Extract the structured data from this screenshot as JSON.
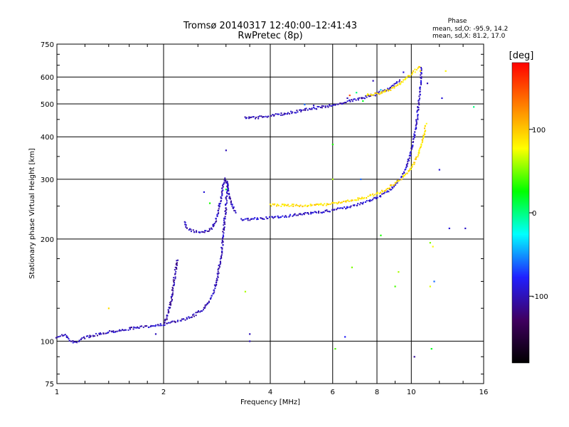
{
  "chart_data": {
    "type": "scatter",
    "title": "Tromsø 20140317 12:40:00–12:41:43",
    "subtitle": "RwPretec (8p)",
    "xlabel": "Frequency [MHz]",
    "ylabel": "Stationary phase Virtual Height [km]",
    "xscale": "log",
    "yscale": "log",
    "xlim": [
      1,
      16
    ],
    "ylim": [
      75,
      750
    ],
    "xticks": [
      1,
      2,
      4,
      6,
      8,
      10,
      16
    ],
    "yticks": [
      75,
      100,
      200,
      300,
      400,
      500,
      600,
      750
    ],
    "grid": true,
    "stats": {
      "heading": "Phase",
      "o_line": "mean, sd,O: -95.9, 14.2",
      "x_line": "mean, sd,X: 81.2, 17.0",
      "o_mean": -95.9,
      "o_sd": 14.2,
      "x_mean": 81.2,
      "x_sd": 17.0
    },
    "colorbar": {
      "label": "[deg]",
      "min": -180,
      "max": 180,
      "ticks": [
        100,
        0,
        -100
      ],
      "tick_labels": [
        "100",
        "0",
        "-100"
      ],
      "colors": [
        "#000000",
        "#400060",
        "#2020ff",
        "#00ffff",
        "#00ff00",
        "#ffff00",
        "#ff8000",
        "#ff0000"
      ]
    },
    "series": [
      {
        "id": "o-trace-e-region",
        "phase": -100,
        "points": [
          [
            1.0,
            103
          ],
          [
            1.03,
            104
          ],
          [
            1.06,
            104
          ],
          [
            1.09,
            100
          ],
          [
            1.12,
            99
          ],
          [
            1.15,
            100
          ],
          [
            1.18,
            102
          ],
          [
            1.22,
            103
          ],
          [
            1.27,
            104
          ],
          [
            1.32,
            105
          ],
          [
            1.37,
            106
          ],
          [
            1.42,
            107
          ],
          [
            1.48,
            107
          ],
          [
            1.55,
            108
          ],
          [
            1.62,
            109
          ],
          [
            1.7,
            110
          ],
          [
            1.78,
            110
          ],
          [
            1.86,
            111
          ],
          [
            1.95,
            112
          ],
          [
            2.0,
            112
          ],
          [
            2.08,
            113
          ],
          [
            2.15,
            114
          ],
          [
            2.22,
            115
          ],
          [
            2.3,
            116
          ],
          [
            2.38,
            118
          ],
          [
            2.46,
            120
          ],
          [
            2.55,
            123
          ],
          [
            2.62,
            126
          ],
          [
            2.68,
            130
          ],
          [
            2.73,
            135
          ],
          [
            2.78,
            142
          ],
          [
            2.83,
            152
          ],
          [
            2.87,
            165
          ],
          [
            2.91,
            180
          ],
          [
            2.94,
            200
          ],
          [
            2.97,
            225
          ],
          [
            3.0,
            250
          ],
          [
            3.02,
            275
          ],
          [
            3.04,
            300
          ]
        ]
      },
      {
        "id": "o-trace-e-branch",
        "phase": -105,
        "points": [
          [
            2.0,
            112
          ],
          [
            2.05,
            118
          ],
          [
            2.08,
            125
          ],
          [
            2.11,
            135
          ],
          [
            2.13,
            145
          ],
          [
            2.15,
            155
          ],
          [
            2.17,
            165
          ],
          [
            2.19,
            175
          ]
        ]
      },
      {
        "id": "o-trace-es-cusp",
        "phase": -100,
        "points": [
          [
            2.3,
            225
          ],
          [
            2.32,
            215
          ],
          [
            2.38,
            212
          ],
          [
            2.45,
            210
          ],
          [
            2.52,
            210
          ],
          [
            2.6,
            210
          ],
          [
            2.68,
            212
          ],
          [
            2.74,
            215
          ],
          [
            2.8,
            225
          ],
          [
            2.85,
            240
          ],
          [
            2.9,
            260
          ],
          [
            2.94,
            285
          ],
          [
            2.98,
            300
          ],
          [
            3.02,
            290
          ],
          [
            3.06,
            270
          ],
          [
            3.1,
            255
          ],
          [
            3.15,
            245
          ],
          [
            3.2,
            238
          ]
        ]
      },
      {
        "id": "o-trace-f-region",
        "phase": -95,
        "points": [
          [
            3.3,
            228
          ],
          [
            3.6,
            229
          ],
          [
            4.0,
            231
          ],
          [
            4.5,
            234
          ],
          [
            5.0,
            237
          ],
          [
            5.5,
            240
          ],
          [
            6.0,
            243
          ],
          [
            6.5,
            247
          ],
          [
            7.0,
            252
          ],
          [
            7.5,
            258
          ],
          [
            8.0,
            265
          ],
          [
            8.5,
            275
          ],
          [
            9.0,
            288
          ],
          [
            9.3,
            300
          ],
          [
            9.6,
            320
          ],
          [
            9.9,
            350
          ],
          [
            10.2,
            400
          ],
          [
            10.4,
            460
          ],
          [
            10.55,
            530
          ],
          [
            10.65,
            600
          ],
          [
            10.7,
            640
          ]
        ]
      },
      {
        "id": "x-trace-f-region",
        "phase": 90,
        "points": [
          [
            4.0,
            252
          ],
          [
            4.5,
            251
          ],
          [
            5.0,
            251
          ],
          [
            5.5,
            252
          ],
          [
            6.0,
            254
          ],
          [
            6.5,
            257
          ],
          [
            7.0,
            261
          ],
          [
            7.5,
            266
          ],
          [
            8.0,
            272
          ],
          [
            8.5,
            280
          ],
          [
            9.0,
            292
          ],
          [
            9.5,
            305
          ],
          [
            10.0,
            325
          ],
          [
            10.4,
            350
          ],
          [
            10.7,
            380
          ],
          [
            10.9,
            410
          ],
          [
            11.0,
            440
          ]
        ]
      },
      {
        "id": "o-trace-multihop",
        "phase": -100,
        "points": [
          [
            3.4,
            455
          ],
          [
            3.6,
            455
          ],
          [
            3.8,
            458
          ],
          [
            4.0,
            462
          ],
          [
            4.3,
            466
          ],
          [
            4.6,
            472
          ],
          [
            5.0,
            480
          ],
          [
            5.5,
            488
          ],
          [
            6.0,
            495
          ],
          [
            6.5,
            505
          ],
          [
            7.0,
            515
          ],
          [
            7.5,
            525
          ],
          [
            8.0,
            535
          ],
          [
            8.5,
            550
          ],
          [
            9.0,
            570
          ],
          [
            9.3,
            590
          ]
        ]
      },
      {
        "id": "x-trace-multihop",
        "phase": 90,
        "points": [
          [
            7.5,
            530
          ],
          [
            8.0,
            535
          ],
          [
            8.5,
            545
          ],
          [
            9.0,
            560
          ],
          [
            9.5,
            585
          ],
          [
            10.0,
            610
          ],
          [
            10.4,
            635
          ],
          [
            10.6,
            650
          ]
        ]
      },
      {
        "id": "scattered-echoes",
        "points": [
          [
            6.0,
            380,
            30
          ],
          [
            6.0,
            300,
            60
          ],
          [
            6.1,
            95,
            40
          ],
          [
            6.5,
            103,
            -80
          ],
          [
            6.8,
            165,
            50
          ],
          [
            7.2,
            300,
            -60
          ],
          [
            8.2,
            205,
            30
          ],
          [
            9.0,
            145,
            40
          ],
          [
            9.2,
            160,
            60
          ],
          [
            10.2,
            90,
            -110
          ],
          [
            11.3,
            195,
            50
          ],
          [
            11.5,
            190,
            80
          ],
          [
            11.4,
            95,
            20
          ],
          [
            11.3,
            145,
            70
          ],
          [
            11.6,
            150,
            -60
          ],
          [
            12.2,
            520,
            -90
          ],
          [
            12.0,
            320,
            -90
          ],
          [
            12.8,
            215,
            -90
          ],
          [
            14.2,
            215,
            -95
          ],
          [
            15.0,
            490,
            0
          ],
          [
            3.4,
            140,
            60
          ],
          [
            3.5,
            100,
            -100
          ],
          [
            3.5,
            105,
            -100
          ],
          [
            3.0,
            280,
            20
          ],
          [
            3.0,
            365,
            -100
          ],
          [
            2.6,
            275,
            -90
          ],
          [
            2.7,
            255,
            30
          ],
          [
            1.4,
            125,
            90
          ],
          [
            1.9,
            105,
            -100
          ],
          [
            5.0,
            498,
            -60
          ],
          [
            7.3,
            510,
            20
          ],
          [
            5.3,
            495,
            -100
          ],
          [
            6.6,
            520,
            -100
          ],
          [
            6.7,
            530,
            150
          ],
          [
            7.0,
            540,
            0
          ],
          [
            8.2,
            550,
            -40
          ],
          [
            7.8,
            585,
            -100
          ],
          [
            9.5,
            620,
            -90
          ],
          [
            11.1,
            575,
            -100
          ],
          [
            10.6,
            625,
            90
          ],
          [
            12.5,
            625,
            80
          ]
        ]
      }
    ]
  }
}
